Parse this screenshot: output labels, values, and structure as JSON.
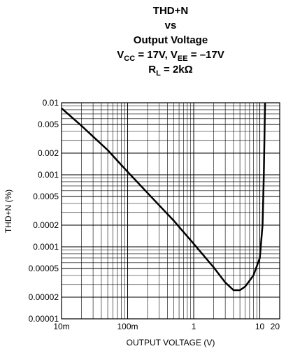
{
  "chart_data": {
    "type": "line",
    "title": [
      [
        {
          "text": "THD+N"
        }
      ],
      [
        {
          "text": "vs"
        }
      ],
      [
        {
          "text": "Output Voltage"
        }
      ],
      [
        {
          "text": "V"
        },
        {
          "text": "CC",
          "sub": true
        },
        {
          "text": " = 17V, V"
        },
        {
          "text": "EE",
          "sub": true
        },
        {
          "text": " = –17V"
        }
      ],
      [
        {
          "text": "R"
        },
        {
          "text": "L",
          "sub": true
        },
        {
          "text": " = 2kΩ"
        }
      ]
    ],
    "x_label": "OUTPUT VOLTAGE (V)",
    "y_label": "THD+N (%)",
    "x": [
      0.01,
      0.02,
      0.05,
      0.1,
      0.2,
      0.5,
      1,
      2,
      3,
      4,
      5,
      6,
      8,
      10,
      11,
      11.5,
      12
    ],
    "series": [
      {
        "name": "THD+N",
        "color": "#000000",
        "values": [
          0.0084,
          0.0048,
          0.0022,
          0.0011,
          0.00056,
          0.00023,
          0.00011,
          5.2e-05,
          3.2e-05,
          2.5e-05,
          2.5e-05,
          2.8e-05,
          4e-05,
          7e-05,
          0.0002,
          0.001,
          0.01
        ]
      }
    ],
    "xlim": [
      0.01,
      20
    ],
    "ylim": [
      1e-05,
      0.01
    ],
    "xticks": [
      {
        "value": 0.01,
        "label": "10m"
      },
      {
        "value": 0.1,
        "label": "100m"
      },
      1,
      10,
      20
    ],
    "yticks": [
      0.01,
      0.005,
      0.002,
      0.001,
      0.0005,
      0.0002,
      0.0001,
      5e-05,
      2e-05,
      1e-05
    ],
    "xlog": true,
    "ylog": true,
    "grid": true
  }
}
